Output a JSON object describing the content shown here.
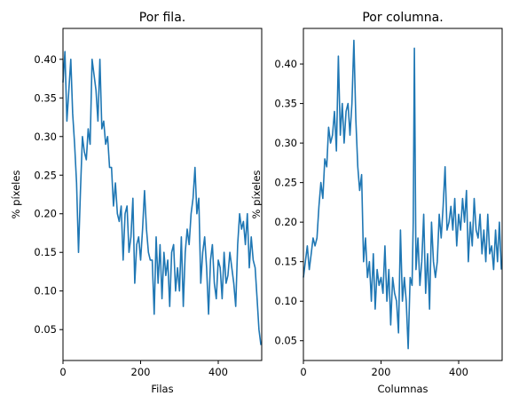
{
  "chart_data": [
    {
      "type": "line",
      "title": "Por fila.",
      "xlabel": "Filas",
      "ylabel": "% píxeles",
      "xlim": [
        0,
        512
      ],
      "ylim": [
        0.01,
        0.44
      ],
      "xticks": [
        0,
        200,
        400
      ],
      "yticks": [
        0.05,
        0.1,
        0.15,
        0.2,
        0.25,
        0.3,
        0.35,
        0.4
      ],
      "ytick_labels": [
        "0.05",
        "0.10",
        "0.15",
        "0.20",
        "0.25",
        "0.30",
        "0.35",
        "0.40"
      ],
      "series": [
        {
          "color": "#1f77b4",
          "x": [
            0,
            5,
            10,
            15,
            20,
            25,
            30,
            35,
            40,
            45,
            50,
            55,
            60,
            65,
            70,
            75,
            80,
            85,
            90,
            95,
            100,
            105,
            110,
            115,
            120,
            125,
            130,
            135,
            140,
            145,
            150,
            155,
            160,
            165,
            170,
            175,
            180,
            185,
            190,
            195,
            200,
            205,
            210,
            215,
            220,
            225,
            230,
            235,
            240,
            245,
            250,
            255,
            260,
            265,
            270,
            275,
            280,
            285,
            290,
            295,
            300,
            305,
            310,
            315,
            320,
            325,
            330,
            335,
            340,
            345,
            350,
            355,
            360,
            365,
            370,
            375,
            380,
            385,
            390,
            395,
            400,
            405,
            410,
            415,
            420,
            425,
            430,
            435,
            440,
            445,
            450,
            455,
            460,
            465,
            470,
            475,
            480,
            485,
            490,
            495,
            500,
            505,
            510
          ],
          "y": [
            0.37,
            0.41,
            0.32,
            0.36,
            0.4,
            0.33,
            0.29,
            0.24,
            0.15,
            0.23,
            0.3,
            0.28,
            0.27,
            0.31,
            0.29,
            0.4,
            0.38,
            0.36,
            0.32,
            0.4,
            0.31,
            0.32,
            0.29,
            0.3,
            0.26,
            0.26,
            0.21,
            0.24,
            0.2,
            0.19,
            0.21,
            0.14,
            0.2,
            0.21,
            0.15,
            0.17,
            0.22,
            0.11,
            0.16,
            0.17,
            0.14,
            0.18,
            0.23,
            0.18,
            0.15,
            0.14,
            0.14,
            0.07,
            0.17,
            0.11,
            0.16,
            0.09,
            0.15,
            0.12,
            0.14,
            0.08,
            0.15,
            0.16,
            0.1,
            0.13,
            0.1,
            0.17,
            0.08,
            0.15,
            0.18,
            0.16,
            0.2,
            0.22,
            0.26,
            0.2,
            0.22,
            0.11,
            0.15,
            0.17,
            0.13,
            0.07,
            0.14,
            0.16,
            0.11,
            0.09,
            0.14,
            0.13,
            0.09,
            0.15,
            0.11,
            0.12,
            0.15,
            0.13,
            0.11,
            0.08,
            0.16,
            0.2,
            0.18,
            0.19,
            0.16,
            0.2,
            0.13,
            0.17,
            0.14,
            0.13,
            0.09,
            0.05,
            0.03
          ]
        }
      ]
    },
    {
      "type": "line",
      "title": "Por columna.",
      "xlabel": "Columnas",
      "ylabel": "% píxeles",
      "xlim": [
        0,
        512
      ],
      "ylim": [
        0.025,
        0.445
      ],
      "xticks": [
        0,
        200,
        400
      ],
      "yticks": [
        0.05,
        0.1,
        0.15,
        0.2,
        0.25,
        0.3,
        0.35,
        0.4
      ],
      "ytick_labels": [
        "0.05",
        "0.10",
        "0.15",
        "0.20",
        "0.25",
        "0.30",
        "0.35",
        "0.40"
      ],
      "series": [
        {
          "color": "#1f77b4",
          "x": [
            0,
            5,
            10,
            15,
            20,
            25,
            30,
            35,
            40,
            45,
            50,
            55,
            60,
            65,
            70,
            75,
            80,
            85,
            90,
            95,
            100,
            105,
            110,
            115,
            120,
            125,
            130,
            135,
            140,
            145,
            150,
            155,
            160,
            165,
            170,
            175,
            180,
            185,
            190,
            195,
            200,
            205,
            210,
            215,
            220,
            225,
            230,
            235,
            240,
            245,
            250,
            255,
            260,
            265,
            270,
            275,
            280,
            283,
            286,
            290,
            295,
            300,
            305,
            310,
            315,
            320,
            325,
            330,
            335,
            340,
            345,
            350,
            355,
            360,
            365,
            370,
            375,
            380,
            385,
            390,
            395,
            400,
            405,
            410,
            415,
            420,
            425,
            430,
            435,
            440,
            445,
            450,
            455,
            460,
            465,
            470,
            475,
            480,
            485,
            490,
            495,
            500,
            505,
            510
          ],
          "y": [
            0.13,
            0.15,
            0.17,
            0.14,
            0.16,
            0.18,
            0.17,
            0.18,
            0.22,
            0.25,
            0.23,
            0.28,
            0.27,
            0.32,
            0.3,
            0.31,
            0.34,
            0.29,
            0.41,
            0.31,
            0.35,
            0.3,
            0.34,
            0.35,
            0.31,
            0.35,
            0.43,
            0.33,
            0.27,
            0.24,
            0.26,
            0.15,
            0.18,
            0.13,
            0.15,
            0.1,
            0.16,
            0.09,
            0.14,
            0.12,
            0.13,
            0.11,
            0.17,
            0.1,
            0.14,
            0.07,
            0.13,
            0.11,
            0.1,
            0.06,
            0.19,
            0.1,
            0.13,
            0.1,
            0.04,
            0.13,
            0.12,
            0.2,
            0.42,
            0.14,
            0.18,
            0.12,
            0.15,
            0.21,
            0.11,
            0.16,
            0.09,
            0.2,
            0.15,
            0.13,
            0.15,
            0.21,
            0.18,
            0.22,
            0.27,
            0.19,
            0.2,
            0.22,
            0.19,
            0.23,
            0.17,
            0.21,
            0.19,
            0.23,
            0.2,
            0.24,
            0.15,
            0.2,
            0.17,
            0.23,
            0.19,
            0.18,
            0.21,
            0.16,
            0.19,
            0.15,
            0.21,
            0.16,
            0.17,
            0.14,
            0.19,
            0.15,
            0.2,
            0.14
          ]
        }
      ]
    }
  ]
}
